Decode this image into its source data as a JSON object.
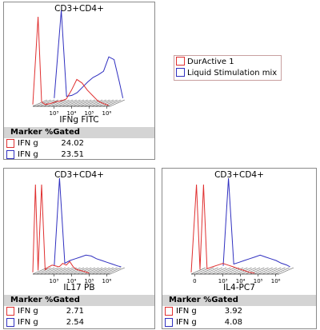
{
  "legend": {
    "items": [
      {
        "label": "DurActive 1",
        "color": "#e03030"
      },
      {
        "label": "Liquid Stimulation mix",
        "color": "#3030c0"
      }
    ]
  },
  "panels": [
    {
      "title": "CD3+CD4+",
      "xlabel": "IFNg FITC",
      "marker_header": "Marker %Gated",
      "rows": [
        {
          "name": "IFN g",
          "value": "24.02",
          "color": "#e03030"
        },
        {
          "name": "IFN g",
          "value": "23.51",
          "color": "#3030c0"
        }
      ]
    },
    {
      "title": "CD3+CD4+",
      "xlabel": "IL17 PB",
      "marker_header": "Marker %Gated",
      "rows": [
        {
          "name": "IFN g",
          "value": "2.71",
          "color": "#e03030"
        },
        {
          "name": "IFN g",
          "value": "2.54",
          "color": "#3030c0"
        }
      ]
    },
    {
      "title": "CD3+CD4+",
      "xlabel": "IL4-PC7",
      "marker_header": "Marker %Gated",
      "rows": [
        {
          "name": "IFN g",
          "value": "3.92",
          "color": "#e03030"
        },
        {
          "name": "IFN g",
          "value": "4.08",
          "color": "#3030c0"
        }
      ]
    }
  ],
  "chart_data": [
    {
      "type": "area",
      "title": "CD3+CD4+",
      "xlabel": "IFNg FITC",
      "x_scale": "log",
      "x_ticks": [
        "10³",
        "10⁴",
        "10⁵",
        "10⁶"
      ],
      "series": [
        {
          "name": "DurActive 1",
          "color": "#e03030",
          "x": [
            1.8,
            2.1,
            2.3,
            2.5,
            2.8,
            3.1,
            3.4,
            3.7,
            4.0,
            4.3,
            4.6,
            4.9,
            5.2,
            5.5,
            5.8,
            6.1
          ],
          "values": [
            0.02,
            1.0,
            0.05,
            0.02,
            0.03,
            0.05,
            0.06,
            0.08,
            0.18,
            0.3,
            0.26,
            0.18,
            0.12,
            0.06,
            0.03,
            0.01
          ]
        },
        {
          "name": "Liquid Stimulation mix",
          "color": "#3030c0",
          "x": [
            2.2,
            2.6,
            2.9,
            3.2,
            3.5,
            3.8,
            4.1,
            4.4,
            4.7,
            5.0,
            5.3,
            5.6,
            5.9,
            6.1
          ],
          "values": [
            0.02,
            1.0,
            0.04,
            0.05,
            0.08,
            0.14,
            0.2,
            0.25,
            0.28,
            0.32,
            0.48,
            0.45,
            0.2,
            0.02
          ]
        }
      ]
    },
    {
      "type": "area",
      "title": "CD3+CD4+",
      "xlabel": "IL17 PB",
      "x_scale": "log",
      "x_ticks": [
        "10³",
        "10⁴",
        "10⁵",
        "10⁶"
      ],
      "series": [
        {
          "name": "DurActive 1",
          "color": "#e03030",
          "x": [
            1.8,
            1.95,
            2.1,
            2.3,
            2.5,
            2.7,
            2.9,
            3.1,
            3.3,
            3.5,
            3.7,
            3.9,
            4.1,
            4.3,
            4.5,
            4.7,
            5.0
          ],
          "values": [
            0.02,
            1.0,
            0.04,
            1.0,
            0.05,
            0.08,
            0.1,
            0.09,
            0.08,
            0.12,
            0.1,
            0.14,
            0.08,
            0.05,
            0.04,
            0.03,
            0.01
          ]
        },
        {
          "name": "Liquid Stimulation mix",
          "color": "#3030c0",
          "x": [
            2.2,
            2.5,
            2.8,
            3.1,
            3.4,
            3.7,
            4.0,
            4.3,
            4.6,
            4.9,
            5.2,
            5.5,
            5.8,
            6.0
          ],
          "values": [
            0.02,
            1.0,
            0.05,
            0.08,
            0.1,
            0.12,
            0.14,
            0.13,
            0.1,
            0.08,
            0.06,
            0.04,
            0.02,
            0.01
          ]
        }
      ]
    },
    {
      "type": "area",
      "title": "CD3+CD4+",
      "xlabel": "IL4-PC7",
      "x_scale": "log",
      "x_ticks": [
        "0",
        "10³",
        "10⁴",
        "10⁵",
        "10⁶"
      ],
      "series": [
        {
          "name": "DurActive 1",
          "color": "#e03030",
          "x": [
            1.2,
            1.5,
            1.7,
            1.9,
            2.1,
            2.4,
            2.7,
            3.0,
            3.3,
            3.6,
            3.9,
            4.2,
            4.5,
            4.8
          ],
          "values": [
            0.02,
            1.0,
            0.05,
            1.0,
            0.06,
            0.08,
            0.1,
            0.12,
            0.1,
            0.08,
            0.06,
            0.04,
            0.02,
            0.01
          ]
        },
        {
          "name": "Liquid Stimulation mix",
          "color": "#3030c0",
          "x": [
            2.2,
            2.5,
            2.8,
            3.1,
            3.4,
            3.7,
            4.0,
            4.3,
            4.6,
            4.9,
            5.2,
            5.5,
            5.8,
            6.0
          ],
          "values": [
            0.02,
            1.0,
            0.04,
            0.06,
            0.08,
            0.1,
            0.12,
            0.14,
            0.12,
            0.1,
            0.08,
            0.05,
            0.03,
            0.01
          ]
        }
      ]
    }
  ]
}
